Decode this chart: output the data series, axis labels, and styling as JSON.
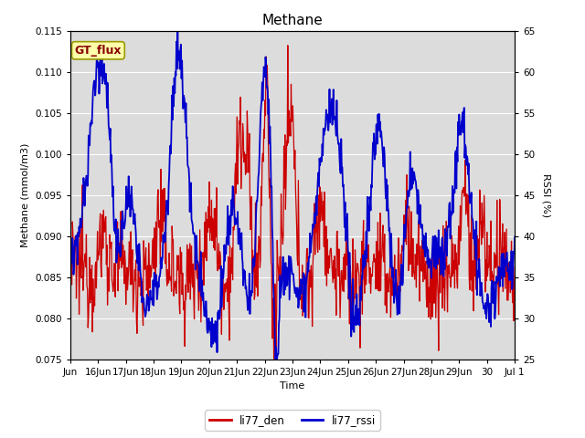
{
  "title": "Methane",
  "ylabel_left": "Methane (mmol/m3)",
  "ylabel_right": "RSSI (%)",
  "xlabel": "Time",
  "ylim_left": [
    0.075,
    0.115
  ],
  "ylim_right": [
    25,
    65
  ],
  "bg_color": "#dcdcdc",
  "annotation_text": "GT_flux",
  "annotation_bg": "#ffffaa",
  "annotation_border": "#999900",
  "line_red": "#cc0000",
  "line_blue": "#0000cc",
  "legend_labels": [
    "li77_den",
    "li77_rssi"
  ],
  "xtick_labels": [
    "Jun",
    "16Jun",
    "17Jun",
    "18Jun",
    "19Jun",
    "20Jun",
    "21Jun",
    "22Jun",
    "23Jun",
    "24Jun",
    "25Jun",
    "26Jun",
    "27Jun",
    "28Jun",
    "29Jun",
    "30",
    "Jul 1"
  ],
  "yticks_left": [
    0.075,
    0.08,
    0.085,
    0.09,
    0.095,
    0.1,
    0.105,
    0.11,
    0.115
  ],
  "yticks_right": [
    25,
    30,
    35,
    40,
    45,
    50,
    55,
    60,
    65
  ],
  "grid_color": "#ffffff",
  "title_fontsize": 11,
  "axis_label_fontsize": 8,
  "tick_fontsize": 7.5,
  "legend_fontsize": 8.5
}
